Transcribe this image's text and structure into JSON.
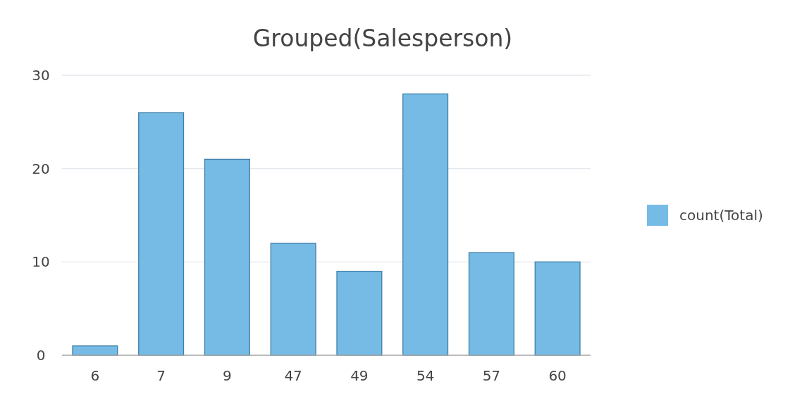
{
  "chart_data": {
    "type": "bar",
    "title": "Grouped(Salesperson)",
    "categories": [
      "6",
      "7",
      "9",
      "47",
      "49",
      "54",
      "57",
      "60"
    ],
    "series": [
      {
        "name": "count(Total)",
        "color": "#76bbe6",
        "values": [
          1,
          26,
          21,
          12,
          9,
          28,
          11,
          10
        ]
      }
    ],
    "ylim": [
      0,
      30
    ],
    "yticks": [
      0,
      10,
      20,
      30
    ],
    "grid": "y",
    "legend": "right"
  }
}
